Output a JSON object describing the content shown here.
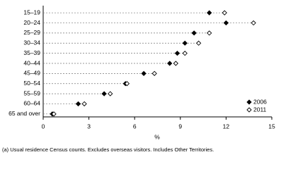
{
  "chart_data": {
    "type": "dot",
    "categories": [
      "15–19",
      "20–24",
      "25–29",
      "30–34",
      "35–39",
      "40–44",
      "45–49",
      "50–54",
      "55–59",
      "60–64",
      "65 and over"
    ],
    "series": [
      {
        "name": "2006",
        "color": "#000000",
        "marker": "filled-diamond",
        "values": [
          10.9,
          12.0,
          9.9,
          9.3,
          8.8,
          8.3,
          6.6,
          5.4,
          4.0,
          2.3,
          0.6
        ]
      },
      {
        "name": "2011",
        "color": "#000000",
        "marker": "open-diamond",
        "values": [
          11.9,
          13.8,
          10.9,
          10.2,
          9.3,
          8.7,
          7.3,
          5.5,
          4.4,
          2.7,
          0.7
        ]
      }
    ],
    "xlabel": "%",
    "xlim": [
      0,
      15
    ],
    "xticks": [
      0,
      3,
      6,
      9,
      12,
      15
    ],
    "legend": "lower right",
    "footnote": "(a) Usual residence Census counts. Excludes overseas visitors. Includes Other Territories."
  }
}
